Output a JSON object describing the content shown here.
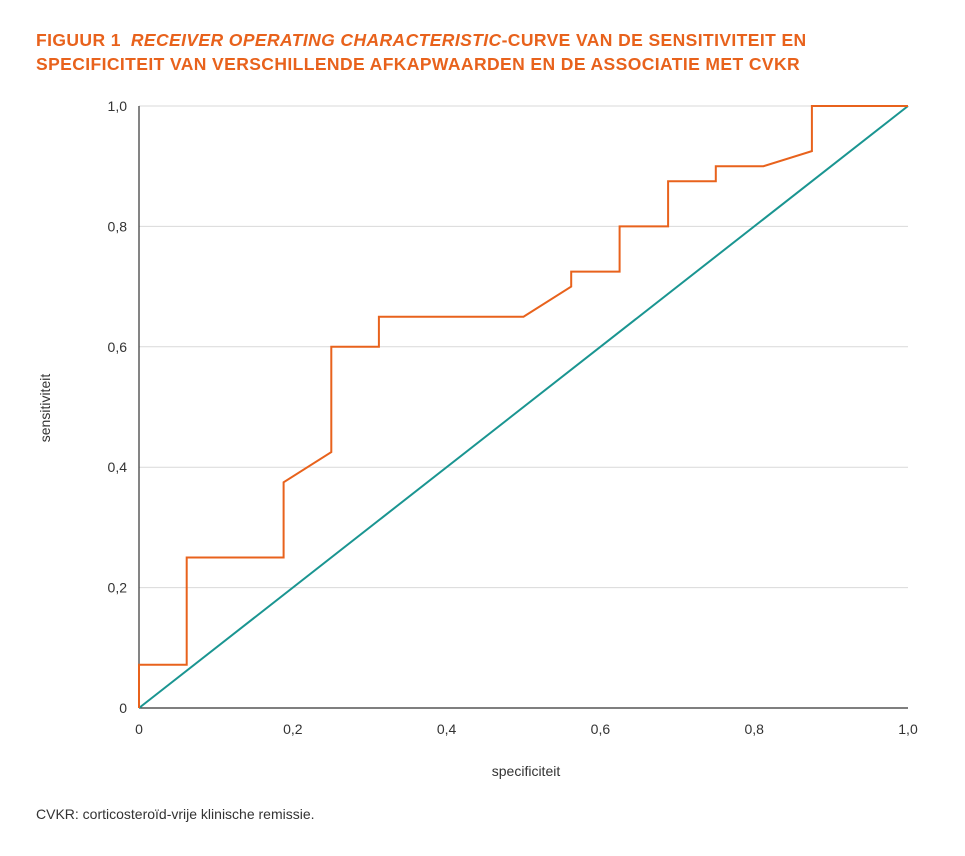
{
  "figure": {
    "label": "FIGUUR 1",
    "title_italic": "RECEIVER OPERATING CHARACTERISTIC",
    "title_rest": "-CURVE VAN DE SENSITIVITEIT EN SPECIFICITEIT VAN VERSCHILLENDE AFKAPWAARDEN EN DE ASSOCIATIE MET CVKR",
    "footnote": "CVKR: corticosteroïd-vrije klinische remissie."
  },
  "chart_data": {
    "type": "line",
    "title": "",
    "xlabel": "specificiteit",
    "ylabel": "sensitiviteit",
    "xlim": [
      0,
      1
    ],
    "ylim": [
      0,
      1
    ],
    "x_ticks": [
      0,
      0.2,
      0.4,
      0.6,
      0.8,
      1.0
    ],
    "x_tick_labels": [
      "0",
      "0,2",
      "0,4",
      "0,6",
      "0,8",
      "1,0"
    ],
    "y_ticks": [
      0,
      0.2,
      0.4,
      0.6,
      0.8,
      1.0
    ],
    "y_tick_labels": [
      "0",
      "0,2",
      "0,4",
      "0,6",
      "0,8",
      "1,0"
    ],
    "grid": "horizontal",
    "legend": "none",
    "series": [
      {
        "color": "#e8621c",
        "x": [
          0,
          0,
          0.062,
          0.062,
          0.188,
          0.188,
          0.25,
          0.25,
          0.312,
          0.312,
          0.5,
          0.562,
          0.562,
          0.625,
          0.625,
          0.688,
          0.688,
          0.75,
          0.75,
          0.812,
          0.875,
          0.875,
          1.0
        ],
        "y": [
          0,
          0.072,
          0.072,
          0.25,
          0.25,
          0.375,
          0.425,
          0.6,
          0.6,
          0.65,
          0.65,
          0.7,
          0.725,
          0.725,
          0.8,
          0.8,
          0.875,
          0.875,
          0.9,
          0.9,
          0.925,
          1.0,
          1.0
        ]
      },
      {
        "color": "#1a9591",
        "x": [
          0,
          1.0
        ],
        "y": [
          0,
          1.0
        ]
      }
    ]
  }
}
